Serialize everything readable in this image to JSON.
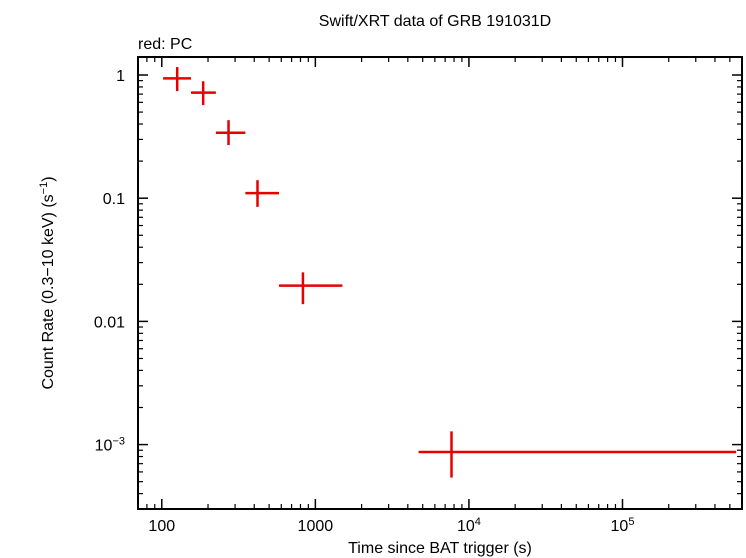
{
  "chart_data": {
    "type": "scatter",
    "title": "Swift/XRT data of GRB 191031D",
    "subtitle": "red: PC",
    "xlabel": "Time since BAT trigger (s)",
    "ylabel": "Count Rate (0.3−10 keV) (s−1)",
    "xscale": "log",
    "yscale": "log",
    "xlim": [
      70,
      600000
    ],
    "ylim": [
      0.0003,
      1.4
    ],
    "x_ticks": [
      {
        "value": 100,
        "label": "100"
      },
      {
        "value": 1000,
        "label": "1000"
      },
      {
        "value": 10000,
        "label": "10^4"
      },
      {
        "value": 100000,
        "label": "10^5"
      }
    ],
    "y_ticks": [
      {
        "value": 1,
        "label": "1"
      },
      {
        "value": 0.1,
        "label": "0.1"
      },
      {
        "value": 0.01,
        "label": "0.01"
      },
      {
        "value": 0.001,
        "label": "10^-3"
      }
    ],
    "series": [
      {
        "color": "#e60000",
        "points": [
          {
            "x": 126,
            "xlo": 102,
            "xhi": 155,
            "y": 0.94,
            "ylo": 0.74,
            "yhi": 1.16
          },
          {
            "x": 186,
            "xlo": 155,
            "xhi": 225,
            "y": 0.72,
            "ylo": 0.57,
            "yhi": 0.89
          },
          {
            "x": 272,
            "xlo": 225,
            "xhi": 350,
            "y": 0.34,
            "ylo": 0.27,
            "yhi": 0.43
          },
          {
            "x": 420,
            "xlo": 350,
            "xhi": 580,
            "y": 0.11,
            "ylo": 0.085,
            "yhi": 0.14
          },
          {
            "x": 830,
            "xlo": 580,
            "xhi": 1500,
            "y": 0.0195,
            "ylo": 0.0138,
            "yhi": 0.025
          },
          {
            "x": 7700,
            "xlo": 4700,
            "xhi": 550000,
            "y": 0.00087,
            "ylo": 0.00054,
            "yhi": 0.00128
          }
        ]
      }
    ]
  }
}
